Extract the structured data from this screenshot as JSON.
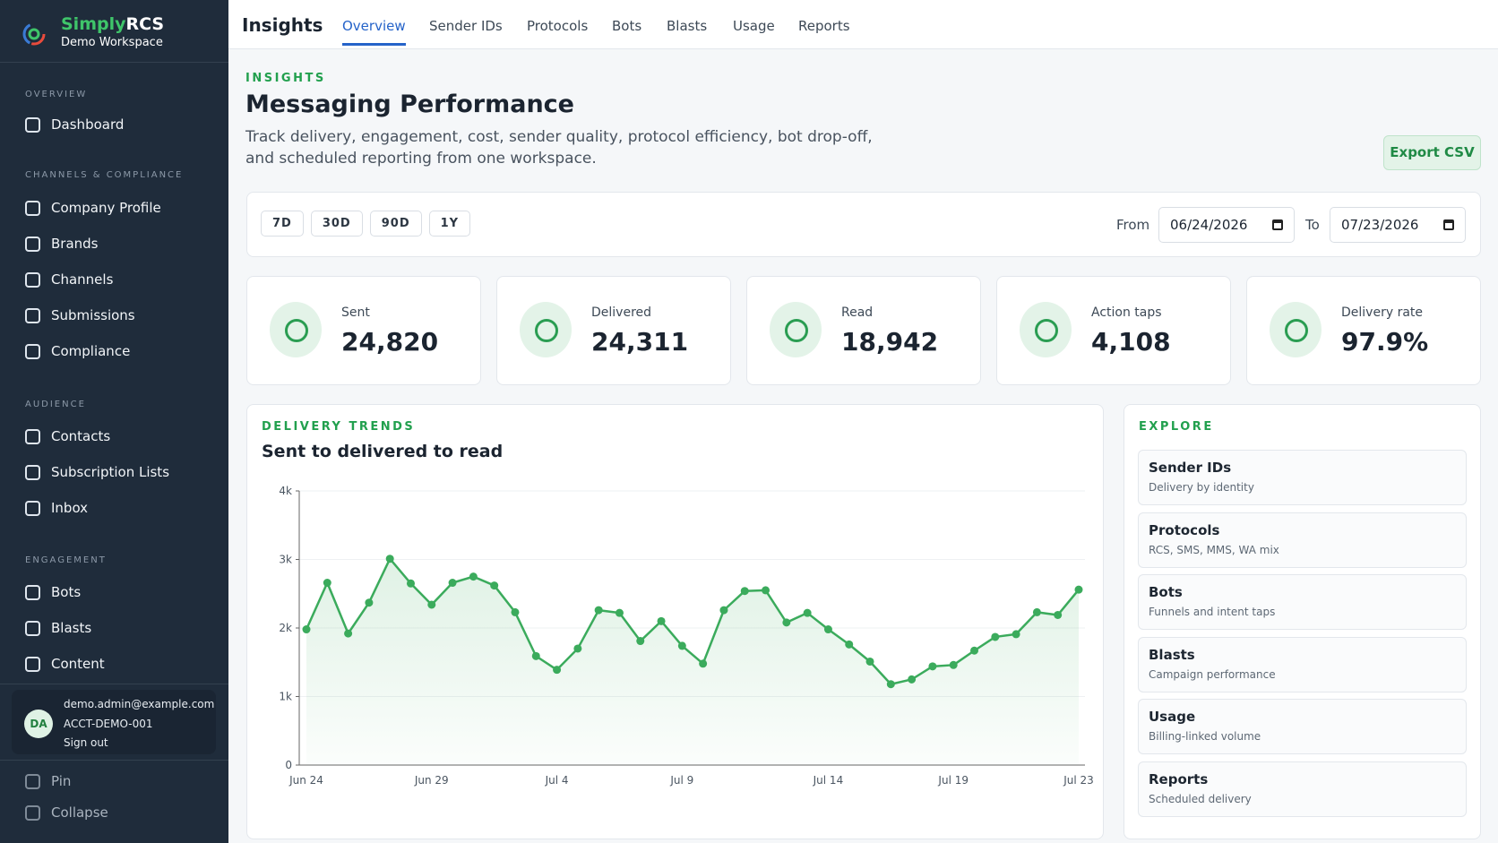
{
  "brand": {
    "name_a": "Simply",
    "name_b": "RCS",
    "workspace": "Demo Workspace"
  },
  "sidebar": {
    "sections": [
      {
        "heading": "OVERVIEW",
        "items": [
          "Dashboard"
        ]
      },
      {
        "heading": "CHANNELS & COMPLIANCE",
        "items": [
          "Company Profile",
          "Brands",
          "Channels",
          "Submissions",
          "Compliance"
        ]
      },
      {
        "heading": "AUDIENCE",
        "items": [
          "Contacts",
          "Subscription Lists",
          "Inbox"
        ]
      },
      {
        "heading": "ENGAGEMENT",
        "items": [
          "Bots",
          "Blasts",
          "Content"
        ]
      }
    ]
  },
  "user": {
    "initials": "DA",
    "email": "demo.admin@example.com",
    "account": "ACCT-DEMO-001",
    "sign_out": "Sign out"
  },
  "sidebar_footer": [
    "Pin",
    "Collapse"
  ],
  "topbar": {
    "title": "Insights",
    "tabs": [
      "Overview",
      "Sender IDs",
      "Protocols",
      "Bots",
      "Blasts",
      "Usage",
      "Reports"
    ],
    "active_tab": 0
  },
  "header": {
    "eyebrow": "INSIGHTS",
    "title": "Messaging Performance",
    "description": "Track delivery, engagement, cost, sender quality, protocol efficiency, bot drop-off, and scheduled reporting from one workspace.",
    "export": "Export CSV"
  },
  "filters": {
    "ranges": [
      "7D",
      "30D",
      "90D",
      "1Y"
    ],
    "from_label": "From",
    "from": "06/24/2026",
    "to_label": "To",
    "to": "07/23/2026"
  },
  "kpis": [
    {
      "label": "Sent",
      "value": "24,820"
    },
    {
      "label": "Delivered",
      "value": "24,311"
    },
    {
      "label": "Read",
      "value": "18,942"
    },
    {
      "label": "Action taps",
      "value": "4,108"
    },
    {
      "label": "Delivery rate",
      "value": "97.9%"
    }
  ],
  "chart_data": {
    "type": "line",
    "eyebrow": "DELIVERY TRENDS",
    "title": "Sent to delivered to read",
    "color": "#3bab5c",
    "categories": [
      "Jun 24",
      null,
      null,
      null,
      null,
      null,
      "Jun 29",
      null,
      null,
      null,
      null,
      null,
      "Jul 4",
      null,
      null,
      null,
      null,
      null,
      "Jul 9",
      null,
      null,
      null,
      null,
      null,
      null,
      "Jul 14",
      null,
      null,
      null,
      null,
      null,
      "Jul 19",
      null,
      null,
      null,
      null,
      null,
      "Jul 23"
    ],
    "values": [
      1980,
      2660,
      1920,
      2370,
      3010,
      2650,
      2340,
      2660,
      2750,
      2620,
      2230,
      1590,
      1390,
      1700,
      2260,
      2220,
      1810,
      2100,
      1740,
      1480,
      2260,
      2540,
      2550,
      2080,
      2220,
      1980,
      1760,
      1510,
      1180,
      1250,
      1440,
      1460,
      1670,
      1870,
      1910,
      2230,
      2190,
      2560
    ],
    "ylim": [
      0,
      4000
    ],
    "yticks": [
      0,
      {
        "value": 1000,
        "label": "1k"
      },
      {
        "value": 2000,
        "label": "2k"
      },
      {
        "value": 3000,
        "label": "3k"
      },
      {
        "value": 4000,
        "label": "4k"
      }
    ],
    "grid": true
  },
  "explore": {
    "heading": "EXPLORE",
    "items": [
      {
        "title": "Sender IDs",
        "subtitle": "Delivery by identity"
      },
      {
        "title": "Protocols",
        "subtitle": "RCS, SMS, MMS, WA mix"
      },
      {
        "title": "Bots",
        "subtitle": "Funnels and intent taps"
      },
      {
        "title": "Blasts",
        "subtitle": "Campaign performance"
      },
      {
        "title": "Usage",
        "subtitle": "Billing-linked volume"
      },
      {
        "title": "Reports",
        "subtitle": "Scheduled delivery"
      }
    ]
  }
}
